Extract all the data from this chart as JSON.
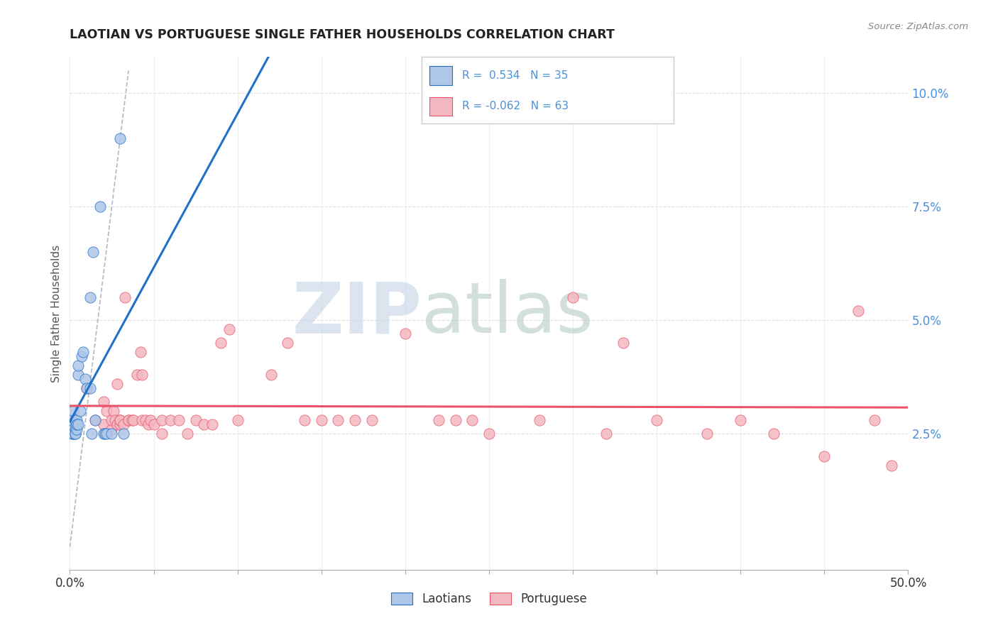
{
  "title": "LAOTIAN VS PORTUGUESE SINGLE FATHER HOUSEHOLDS CORRELATION CHART",
  "source": "Source: ZipAtlas.com",
  "ylabel": "Single Father Households",
  "ytick_labels": [
    "2.5%",
    "5.0%",
    "7.5%",
    "10.0%"
  ],
  "ytick_values": [
    0.025,
    0.05,
    0.075,
    0.1
  ],
  "xlim": [
    0.0,
    0.5
  ],
  "ylim": [
    -0.005,
    0.108
  ],
  "laotian_R": 0.534,
  "laotian_N": 35,
  "portuguese_R": -0.062,
  "portuguese_N": 63,
  "laotian_color": "#aec6e8",
  "portuguese_color": "#f4b8c1",
  "laotian_line_color": "#2070c8",
  "portuguese_line_color": "#e8536a",
  "tick_color": "#4a90d9",
  "watermark_zip": "ZIP",
  "watermark_atlas": "atlas",
  "watermark_color_zip": "#c0d4e8",
  "watermark_color_atlas": "#b8d0c8",
  "legend_border_color": "#cccccc",
  "grid_color": "#e0e0e0",
  "laotian_points": [
    [
      0.0,
      0.026
    ],
    [
      0.0,
      0.026
    ],
    [
      0.001,
      0.025
    ],
    [
      0.001,
      0.028
    ],
    [
      0.002,
      0.025
    ],
    [
      0.002,
      0.026
    ],
    [
      0.002,
      0.03
    ],
    [
      0.002,
      0.025
    ],
    [
      0.003,
      0.025
    ],
    [
      0.003,
      0.026
    ],
    [
      0.003,
      0.025
    ],
    [
      0.003,
      0.028
    ],
    [
      0.004,
      0.026
    ],
    [
      0.004,
      0.028
    ],
    [
      0.004,
      0.027
    ],
    [
      0.005,
      0.027
    ],
    [
      0.005,
      0.038
    ],
    [
      0.005,
      0.04
    ],
    [
      0.006,
      0.03
    ],
    [
      0.007,
      0.042
    ],
    [
      0.008,
      0.043
    ],
    [
      0.009,
      0.037
    ],
    [
      0.01,
      0.035
    ],
    [
      0.012,
      0.035
    ],
    [
      0.012,
      0.055
    ],
    [
      0.013,
      0.025
    ],
    [
      0.014,
      0.065
    ],
    [
      0.015,
      0.028
    ],
    [
      0.018,
      0.075
    ],
    [
      0.02,
      0.025
    ],
    [
      0.021,
      0.025
    ],
    [
      0.022,
      0.025
    ],
    [
      0.025,
      0.025
    ],
    [
      0.03,
      0.09
    ],
    [
      0.032,
      0.025
    ]
  ],
  "portuguese_points": [
    [
      0.01,
      0.035
    ],
    [
      0.015,
      0.028
    ],
    [
      0.02,
      0.032
    ],
    [
      0.02,
      0.027
    ],
    [
      0.022,
      0.03
    ],
    [
      0.025,
      0.026
    ],
    [
      0.025,
      0.028
    ],
    [
      0.026,
      0.03
    ],
    [
      0.027,
      0.028
    ],
    [
      0.028,
      0.036
    ],
    [
      0.028,
      0.027
    ],
    [
      0.03,
      0.027
    ],
    [
      0.03,
      0.028
    ],
    [
      0.03,
      0.028
    ],
    [
      0.032,
      0.027
    ],
    [
      0.033,
      0.055
    ],
    [
      0.035,
      0.028
    ],
    [
      0.035,
      0.028
    ],
    [
      0.037,
      0.028
    ],
    [
      0.038,
      0.028
    ],
    [
      0.04,
      0.038
    ],
    [
      0.042,
      0.043
    ],
    [
      0.043,
      0.028
    ],
    [
      0.043,
      0.038
    ],
    [
      0.045,
      0.028
    ],
    [
      0.047,
      0.027
    ],
    [
      0.048,
      0.028
    ],
    [
      0.05,
      0.027
    ],
    [
      0.055,
      0.025
    ],
    [
      0.055,
      0.028
    ],
    [
      0.06,
      0.028
    ],
    [
      0.065,
      0.028
    ],
    [
      0.07,
      0.025
    ],
    [
      0.075,
      0.028
    ],
    [
      0.08,
      0.027
    ],
    [
      0.085,
      0.027
    ],
    [
      0.09,
      0.045
    ],
    [
      0.095,
      0.048
    ],
    [
      0.1,
      0.028
    ],
    [
      0.12,
      0.038
    ],
    [
      0.13,
      0.045
    ],
    [
      0.14,
      0.028
    ],
    [
      0.15,
      0.028
    ],
    [
      0.16,
      0.028
    ],
    [
      0.17,
      0.028
    ],
    [
      0.18,
      0.028
    ],
    [
      0.2,
      0.047
    ],
    [
      0.22,
      0.028
    ],
    [
      0.23,
      0.028
    ],
    [
      0.24,
      0.028
    ],
    [
      0.25,
      0.025
    ],
    [
      0.28,
      0.028
    ],
    [
      0.3,
      0.055
    ],
    [
      0.32,
      0.025
    ],
    [
      0.33,
      0.045
    ],
    [
      0.35,
      0.028
    ],
    [
      0.38,
      0.025
    ],
    [
      0.4,
      0.028
    ],
    [
      0.42,
      0.025
    ],
    [
      0.45,
      0.02
    ],
    [
      0.47,
      0.052
    ],
    [
      0.48,
      0.028
    ],
    [
      0.49,
      0.018
    ]
  ]
}
